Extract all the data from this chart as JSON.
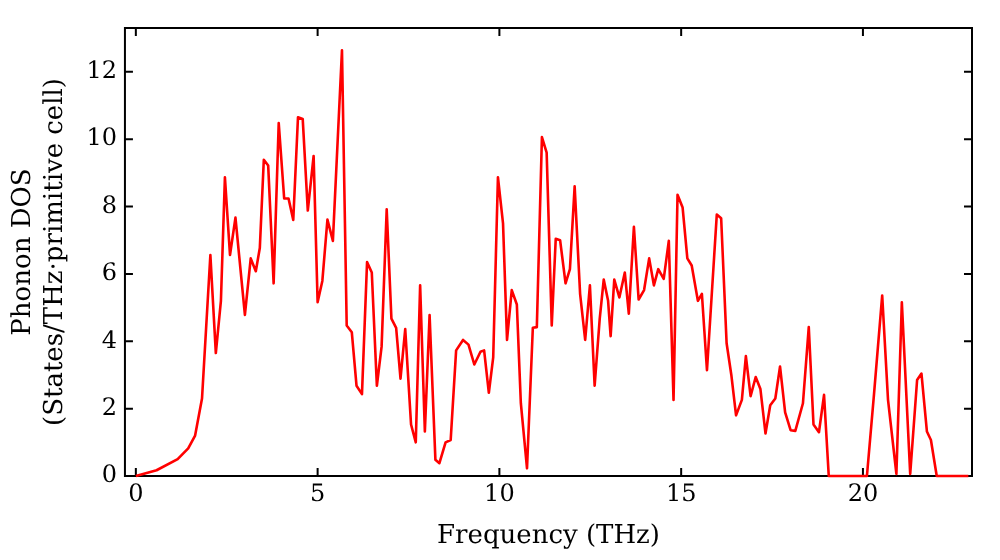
{
  "chart_data": {
    "type": "line",
    "xlabel": "Frequency (THz)",
    "ylabel": "Phonon DOS\n(States/THz·primitive cell)",
    "xlim": [
      -0.3,
      23.0
    ],
    "xticks": [
      0,
      5,
      10,
      15,
      20
    ],
    "ylim": [
      0,
      13.3
    ],
    "yticks": [
      0,
      2,
      4,
      6,
      8,
      10,
      12
    ],
    "grid": false,
    "legend": false,
    "marker": "none",
    "line_style": "solid",
    "series": [
      {
        "color": "#ff0000",
        "x": [
          0,
          0.57,
          1.15,
          1.44,
          1.63,
          1.82,
          2.05,
          2.2,
          2.34,
          2.45,
          2.59,
          2.74,
          3.0,
          3.16,
          3.3,
          3.41,
          3.52,
          3.64,
          3.79,
          3.93,
          4.08,
          4.2,
          4.33,
          4.46,
          4.59,
          4.73,
          4.89,
          5.0,
          5.13,
          5.27,
          5.42,
          5.67,
          5.8,
          5.94,
          6.07,
          6.22,
          6.36,
          6.49,
          6.63,
          6.76,
          6.9,
          7.03,
          7.16,
          7.28,
          7.41,
          7.57,
          7.7,
          7.82,
          7.95,
          8.08,
          8.24,
          8.35,
          8.52,
          8.66,
          8.81,
          9.0,
          9.15,
          9.31,
          9.48,
          9.58,
          9.71,
          9.83,
          9.96,
          10.1,
          10.21,
          10.34,
          10.48,
          10.59,
          10.76,
          10.92,
          11.03,
          11.17,
          11.3,
          11.44,
          11.55,
          11.67,
          11.82,
          11.94,
          12.07,
          12.22,
          12.36,
          12.49,
          12.62,
          12.76,
          12.87,
          12.99,
          13.06,
          13.16,
          13.3,
          13.45,
          13.56,
          13.7,
          13.83,
          13.98,
          14.12,
          14.25,
          14.37,
          14.52,
          14.66,
          14.79,
          14.9,
          15.04,
          15.17,
          15.29,
          15.46,
          15.57,
          15.71,
          15.98,
          16.1,
          16.25,
          16.38,
          16.51,
          16.67,
          16.78,
          16.91,
          17.05,
          17.18,
          17.32,
          17.45,
          17.59,
          17.72,
          17.86,
          18.01,
          18.14,
          18.35,
          18.51,
          18.64,
          18.79,
          18.93,
          19.06,
          20.11,
          20.3,
          20.53,
          20.69,
          20.92,
          21.07,
          21.3,
          21.49,
          21.61,
          21.76,
          21.87,
          22.03,
          22.9
        ],
        "values": [
          0,
          0.17,
          0.5,
          0.82,
          1.2,
          2.3,
          6.56,
          3.65,
          5.2,
          8.87,
          6.56,
          7.67,
          4.78,
          6.46,
          6.08,
          6.77,
          9.39,
          9.22,
          5.72,
          10.48,
          8.24,
          8.24,
          7.6,
          10.65,
          10.6,
          7.88,
          9.5,
          5.16,
          5.79,
          7.61,
          6.98,
          12.64,
          4.47,
          4.27,
          2.68,
          2.43,
          6.35,
          6.04,
          2.68,
          3.84,
          7.92,
          4.67,
          4.4,
          2.89,
          4.36,
          1.53,
          1.0,
          5.66,
          1.32,
          4.78,
          0.48,
          0.38,
          1.0,
          1.07,
          3.73,
          4.04,
          3.9,
          3.31,
          3.69,
          3.73,
          2.47,
          3.52,
          8.87,
          7.5,
          4.04,
          5.52,
          5.09,
          2.16,
          0.23,
          4.4,
          4.42,
          10.06,
          9.6,
          4.47,
          7.04,
          7.0,
          5.72,
          6.14,
          8.6,
          5.41,
          4.04,
          5.66,
          2.68,
          4.67,
          5.83,
          5.2,
          4.15,
          5.83,
          5.3,
          6.04,
          4.82,
          7.4,
          5.24,
          5.52,
          6.46,
          5.66,
          6.14,
          5.85,
          6.98,
          2.26,
          8.35,
          7.97,
          6.46,
          6.25,
          5.2,
          5.41,
          3.14,
          7.76,
          7.65,
          3.94,
          3.0,
          1.8,
          2.26,
          3.56,
          2.37,
          2.94,
          2.58,
          1.26,
          2.1,
          2.3,
          3.25,
          1.89,
          1.36,
          1.34,
          2.16,
          4.42,
          1.53,
          1.3,
          2.41,
          0,
          0,
          2.37,
          5.36,
          2.26,
          0.06,
          5.16,
          0.06,
          2.85,
          3.04,
          1.32,
          1.07,
          0,
          0
        ]
      }
    ]
  }
}
